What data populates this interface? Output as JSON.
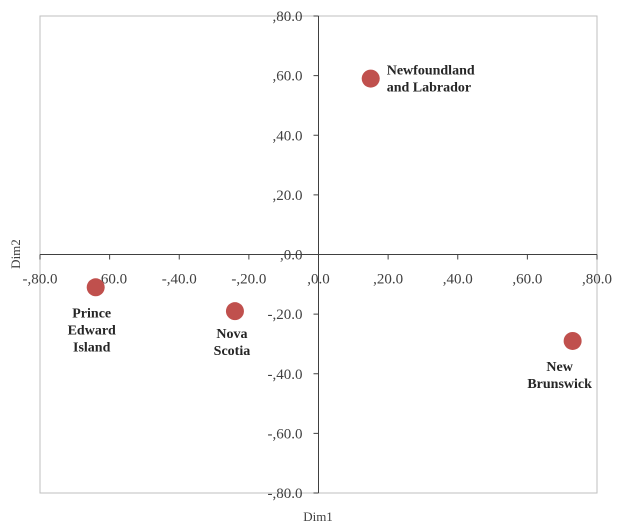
{
  "chart_data": {
    "type": "scatter",
    "title": "",
    "xlabel": "Dim1",
    "ylabel": "Dim2",
    "xlim": [
      -80,
      80
    ],
    "ylim": [
      -80,
      80
    ],
    "x_ticks": [
      -80,
      -60,
      -40,
      -20,
      0,
      20,
      40,
      60,
      80
    ],
    "y_ticks": [
      -80,
      -60,
      -40,
      -20,
      0,
      20,
      40,
      60,
      80
    ],
    "x_tick_labels": [
      "-,80.0",
      "-,60.0",
      "-,40.0",
      "-,20.0",
      ",0.0",
      ",20.0",
      ",40.0",
      ",60.0",
      ",80.0"
    ],
    "y_tick_labels": [
      "-,80.0",
      "-,60.0",
      "-,40.0",
      "-,20.0",
      ",0.0",
      ",20.0",
      ",40.0",
      ",60.0",
      ",80.0"
    ],
    "grid": false,
    "legend": "none",
    "marker_color": "#c0504d",
    "points": [
      {
        "label": [
          "Newfoundland",
          "and Labrador"
        ],
        "x": 15,
        "y": 59
      },
      {
        "label": [
          "Prince",
          "Edward",
          "Island"
        ],
        "x": -64,
        "y": -11
      },
      {
        "label": [
          "Nova",
          "Scotia"
        ],
        "x": -24,
        "y": -19
      },
      {
        "label": [
          "New",
          "Brunswick"
        ],
        "x": 73,
        "y": -29
      }
    ]
  }
}
